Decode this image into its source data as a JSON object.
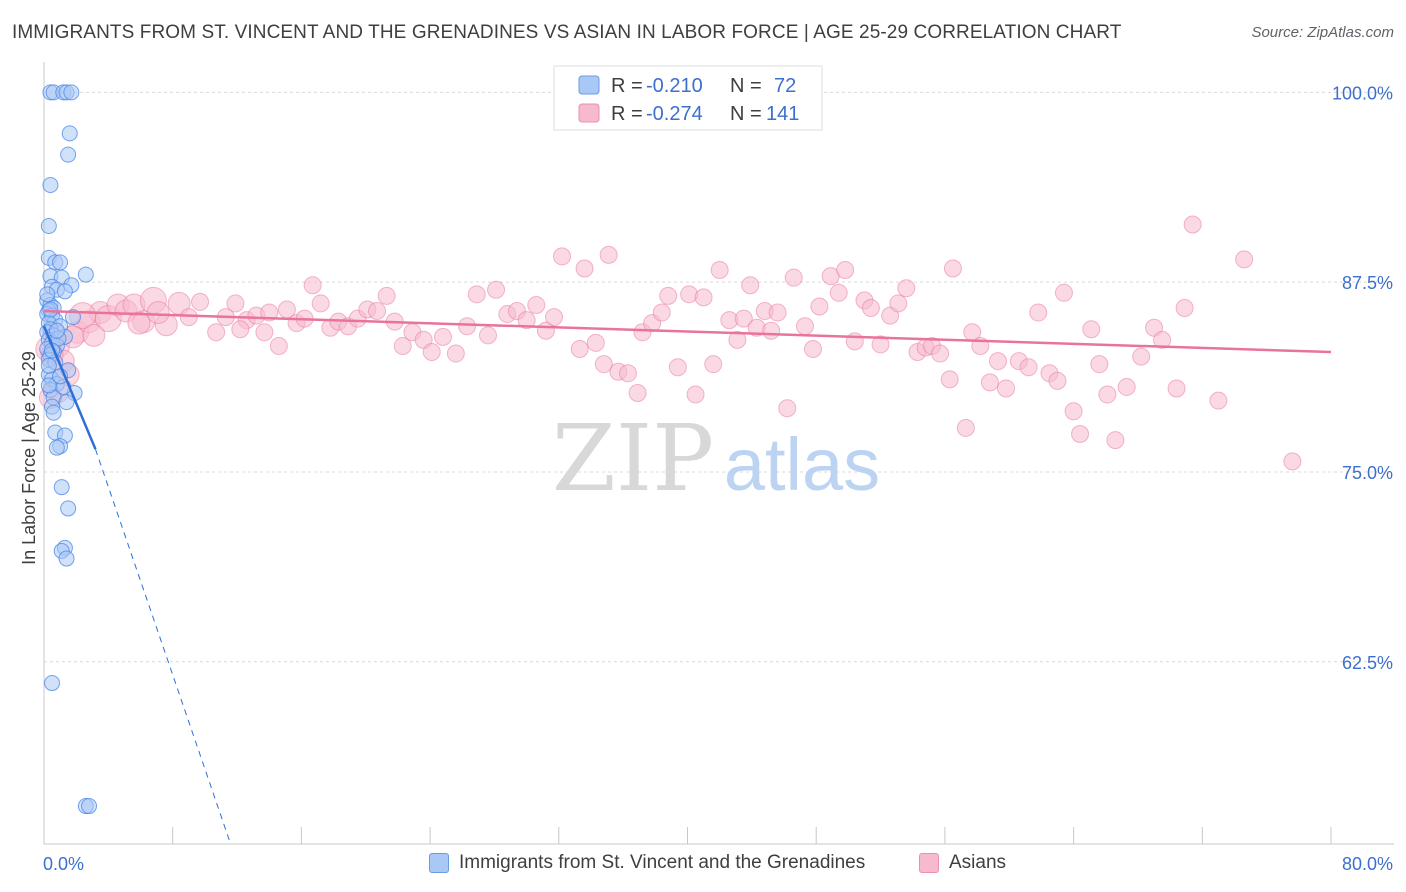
{
  "title": "IMMIGRANTS FROM ST. VINCENT AND THE GRENADINES VS ASIAN IN LABOR FORCE | AGE 25-29 CORRELATION CHART",
  "source": "Source: ZipAtlas.com",
  "watermark": {
    "zip": "ZIP",
    "atlas": "atlas"
  },
  "colors": {
    "blue": "#4a86e8",
    "blue_fill": "#a9c8f5",
    "blue_line": "#2d6fd6",
    "pink": "#e8739b",
    "pink_fill": "#f7b9cd",
    "pink_line": "#e8739b",
    "axis_label": "#3d6fcf",
    "grid": "#d9d9d9"
  },
  "legend_top": {
    "rows": [
      {
        "r_label": "R =",
        "r_value": "-0.210",
        "n_label": "N =",
        "n_value": "72"
      },
      {
        "r_label": "R =",
        "r_value": "-0.274",
        "n_label": "N =",
        "n_value": "141"
      }
    ]
  },
  "legend_bottom": [
    {
      "label": "Immigrants from St. Vincent and the Grenadines"
    },
    {
      "label": "Asians"
    }
  ],
  "chart_data": {
    "type": "scatter",
    "ylabel": "In Labor Force | Age 25-29",
    "xlim": [
      0,
      80
    ],
    "ylim": [
      50.5,
      102
    ],
    "x_tick_labels": [
      "0.0%",
      "80.0%"
    ],
    "y_ticks": [
      100.0,
      87.5,
      75.0,
      62.5
    ],
    "y_tick_labels": [
      "100.0%",
      "87.5%",
      "75.0%",
      "62.5%"
    ],
    "grid": true,
    "legend_position": "top-center",
    "series": [
      {
        "name": "Immigrants from St. Vincent and the Grenadines",
        "color": "#4a86e8",
        "trend": {
          "x": [
            0.0,
            3.2
          ],
          "y": [
            84.6,
            76.5
          ],
          "dashed_to": [
            11.6,
            50.5
          ]
        },
        "points": [
          [
            0.4,
            100.0
          ],
          [
            0.6,
            100.0
          ],
          [
            1.2,
            100.0
          ],
          [
            1.4,
            100.0
          ],
          [
            1.7,
            100.0
          ],
          [
            1.6,
            97.3
          ],
          [
            1.5,
            95.9
          ],
          [
            0.4,
            93.9
          ],
          [
            0.3,
            91.2
          ],
          [
            0.3,
            89.1
          ],
          [
            0.7,
            88.8
          ],
          [
            1.0,
            88.8
          ],
          [
            2.6,
            88.0
          ],
          [
            0.4,
            87.9
          ],
          [
            1.1,
            87.8
          ],
          [
            1.7,
            87.3
          ],
          [
            0.5,
            87.2
          ],
          [
            0.8,
            87.0
          ],
          [
            1.3,
            86.9
          ],
          [
            0.2,
            86.3
          ],
          [
            0.4,
            86.0
          ],
          [
            0.6,
            85.8
          ],
          [
            0.3,
            85.6
          ],
          [
            0.2,
            85.4
          ],
          [
            0.5,
            85.3
          ],
          [
            1.8,
            85.2
          ],
          [
            0.7,
            85.0
          ],
          [
            0.3,
            84.8
          ],
          [
            1.0,
            84.6
          ],
          [
            0.4,
            84.4
          ],
          [
            0.2,
            84.2
          ],
          [
            0.6,
            84.0
          ],
          [
            1.3,
            83.9
          ],
          [
            0.3,
            83.7
          ],
          [
            0.5,
            83.5
          ],
          [
            0.8,
            83.3
          ],
          [
            0.2,
            83.1
          ],
          [
            0.6,
            82.9
          ],
          [
            0.4,
            82.7
          ],
          [
            0.3,
            82.4
          ],
          [
            0.7,
            82.2
          ],
          [
            1.5,
            81.7
          ],
          [
            0.3,
            81.4
          ],
          [
            0.5,
            81.1
          ],
          [
            0.8,
            80.8
          ],
          [
            0.4,
            80.4
          ],
          [
            1.9,
            80.2
          ],
          [
            0.6,
            79.9
          ],
          [
            1.4,
            79.6
          ],
          [
            0.5,
            79.3
          ],
          [
            0.7,
            77.6
          ],
          [
            1.3,
            77.4
          ],
          [
            1.0,
            76.7
          ],
          [
            0.8,
            76.6
          ],
          [
            1.1,
            74.0
          ],
          [
            1.5,
            72.6
          ],
          [
            1.3,
            70.0
          ],
          [
            1.1,
            69.8
          ],
          [
            1.4,
            69.3
          ],
          [
            0.5,
            61.1
          ],
          [
            2.6,
            53.0
          ],
          [
            2.8,
            53.0
          ],
          [
            0.2,
            86.7
          ],
          [
            0.9,
            83.8
          ],
          [
            0.3,
            82.0
          ],
          [
            1.2,
            80.6
          ],
          [
            0.6,
            78.9
          ],
          [
            0.4,
            85.7
          ],
          [
            0.8,
            84.3
          ],
          [
            0.5,
            83.0
          ],
          [
            0.3,
            80.7
          ],
          [
            1.0,
            81.3
          ]
        ]
      },
      {
        "name": "Asians",
        "color": "#e8739b",
        "trend": {
          "x": [
            0.0,
            80.0
          ],
          "y": [
            85.6,
            82.9
          ]
        },
        "points": [
          [
            0.3,
            83.1
          ],
          [
            0.6,
            84.1
          ],
          [
            0.9,
            83.3
          ],
          [
            1.2,
            82.3
          ],
          [
            1.5,
            81.4
          ],
          [
            0.8,
            80.4
          ],
          [
            0.4,
            79.9
          ],
          [
            2.1,
            84.2
          ],
          [
            2.8,
            84.9
          ],
          [
            3.5,
            85.5
          ],
          [
            4.0,
            85.1
          ],
          [
            4.6,
            86.0
          ],
          [
            5.1,
            85.6
          ],
          [
            5.6,
            86.0
          ],
          [
            6.2,
            84.9
          ],
          [
            6.8,
            86.3
          ],
          [
            7.6,
            84.7
          ],
          [
            8.4,
            86.1
          ],
          [
            9.0,
            85.2
          ],
          [
            9.7,
            86.2
          ],
          [
            10.7,
            84.2
          ],
          [
            11.3,
            85.2
          ],
          [
            11.9,
            86.1
          ],
          [
            12.6,
            85.0
          ],
          [
            13.2,
            85.3
          ],
          [
            13.7,
            84.2
          ],
          [
            14.0,
            85.5
          ],
          [
            14.6,
            83.3
          ],
          [
            15.1,
            85.7
          ],
          [
            15.7,
            84.8
          ],
          [
            16.2,
            85.1
          ],
          [
            16.7,
            87.3
          ],
          [
            17.2,
            86.1
          ],
          [
            17.8,
            84.5
          ],
          [
            18.3,
            84.9
          ],
          [
            18.9,
            84.6
          ],
          [
            19.5,
            85.1
          ],
          [
            20.1,
            85.7
          ],
          [
            20.7,
            85.6
          ],
          [
            21.3,
            86.6
          ],
          [
            21.8,
            84.9
          ],
          [
            22.3,
            83.3
          ],
          [
            22.9,
            84.2
          ],
          [
            23.6,
            83.7
          ],
          [
            24.1,
            82.9
          ],
          [
            24.8,
            83.9
          ],
          [
            25.6,
            82.8
          ],
          [
            26.3,
            84.6
          ],
          [
            26.9,
            86.7
          ],
          [
            27.6,
            84.0
          ],
          [
            28.1,
            87.0
          ],
          [
            28.8,
            85.4
          ],
          [
            29.4,
            85.6
          ],
          [
            30.0,
            85.0
          ],
          [
            30.6,
            86.0
          ],
          [
            31.2,
            84.3
          ],
          [
            31.7,
            85.2
          ],
          [
            32.2,
            89.2
          ],
          [
            33.3,
            83.1
          ],
          [
            33.6,
            88.4
          ],
          [
            34.3,
            83.5
          ],
          [
            34.8,
            82.1
          ],
          [
            35.1,
            89.3
          ],
          [
            35.7,
            81.6
          ],
          [
            36.3,
            81.5
          ],
          [
            36.9,
            80.2
          ],
          [
            37.2,
            84.2
          ],
          [
            37.8,
            84.8
          ],
          [
            38.4,
            85.5
          ],
          [
            38.8,
            86.6
          ],
          [
            39.4,
            81.9
          ],
          [
            40.1,
            86.7
          ],
          [
            40.5,
            80.1
          ],
          [
            41.0,
            86.5
          ],
          [
            41.6,
            82.1
          ],
          [
            42.0,
            88.3
          ],
          [
            42.6,
            85.0
          ],
          [
            43.1,
            83.7
          ],
          [
            43.5,
            85.1
          ],
          [
            43.9,
            87.3
          ],
          [
            44.3,
            84.5
          ],
          [
            44.8,
            85.6
          ],
          [
            45.2,
            84.3
          ],
          [
            45.6,
            85.5
          ],
          [
            46.2,
            79.2
          ],
          [
            46.6,
            87.8
          ],
          [
            47.3,
            84.6
          ],
          [
            47.8,
            83.1
          ],
          [
            48.2,
            85.9
          ],
          [
            48.9,
            87.9
          ],
          [
            49.4,
            86.8
          ],
          [
            49.8,
            88.3
          ],
          [
            50.4,
            83.6
          ],
          [
            51.0,
            86.3
          ],
          [
            51.4,
            85.8
          ],
          [
            52.0,
            83.4
          ],
          [
            52.6,
            85.3
          ],
          [
            53.1,
            86.1
          ],
          [
            53.6,
            87.1
          ],
          [
            54.3,
            82.9
          ],
          [
            54.8,
            83.2
          ],
          [
            55.2,
            83.3
          ],
          [
            55.7,
            82.8
          ],
          [
            56.3,
            81.1
          ],
          [
            56.5,
            88.4
          ],
          [
            57.3,
            77.9
          ],
          [
            57.7,
            84.2
          ],
          [
            58.2,
            83.3
          ],
          [
            58.8,
            80.9
          ],
          [
            59.3,
            82.3
          ],
          [
            59.8,
            80.5
          ],
          [
            60.6,
            82.3
          ],
          [
            61.2,
            81.9
          ],
          [
            61.8,
            85.5
          ],
          [
            62.5,
            81.5
          ],
          [
            63.0,
            81.0
          ],
          [
            63.4,
            86.8
          ],
          [
            64.0,
            79.0
          ],
          [
            64.4,
            77.5
          ],
          [
            65.1,
            84.4
          ],
          [
            65.6,
            82.1
          ],
          [
            66.1,
            80.1
          ],
          [
            66.6,
            77.1
          ],
          [
            67.3,
            80.6
          ],
          [
            68.2,
            82.6
          ],
          [
            69.0,
            84.5
          ],
          [
            69.5,
            83.7
          ],
          [
            70.4,
            80.5
          ],
          [
            70.9,
            85.8
          ],
          [
            71.4,
            91.3
          ],
          [
            73.0,
            79.7
          ],
          [
            74.6,
            89.0
          ],
          [
            77.6,
            75.7
          ],
          [
            0.5,
            82.7
          ],
          [
            1.8,
            83.9
          ],
          [
            2.4,
            85.3
          ],
          [
            3.1,
            84.0
          ],
          [
            5.9,
            84.8
          ],
          [
            7.1,
            85.5
          ],
          [
            12.2,
            84.4
          ]
        ]
      }
    ]
  }
}
